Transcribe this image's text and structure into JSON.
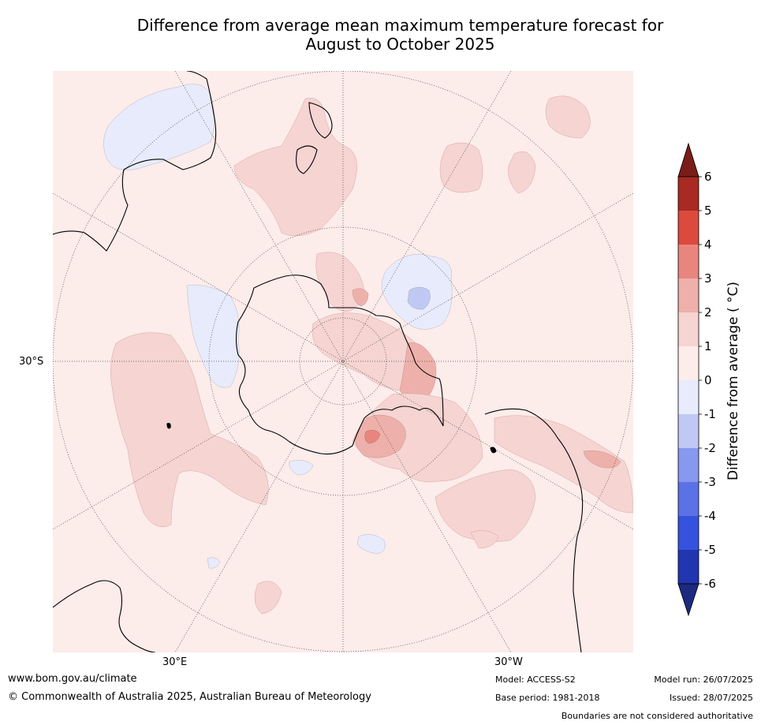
{
  "title": {
    "line1": "Difference from average mean maximum temperature forecast for",
    "line2": "August to October 2025"
  },
  "graticule_labels": {
    "lat_30s": "30°S",
    "lon_30e": "30°E",
    "lon_30w": "30°W"
  },
  "colorbar": {
    "title": "Difference from average ( °C)",
    "ticks": [
      "6",
      "5",
      "4",
      "3",
      "2",
      "1",
      "0",
      "-1",
      "-2",
      "-3",
      "-4",
      "-5",
      "-6"
    ],
    "colors_high_to_low": [
      "#7a1d19",
      "#a82a22",
      "#dc4a3e",
      "#e8867e",
      "#eeb0aa",
      "#f5d4d2",
      "#fcecea",
      "#e8ebfb",
      "#c0c8f4",
      "#8898ee",
      "#5b72e6",
      "#3552de",
      "#2235b0",
      "#1c2a80"
    ]
  },
  "map": {
    "projection": "south polar stereographic",
    "anomaly_colors": {
      "background": "#fcecea",
      "warm_1_2": "#f5d4d2",
      "warm_2_3": "#eeb0aa",
      "warm_3_4": "#e8867e",
      "cool_0_1": "#e8ebfb",
      "cool_1_2": "#c0c8f4"
    }
  },
  "footer": {
    "url": "www.bom.gov.au/climate",
    "copyright": "© Commonwealth of Australia 2025, Australian Bureau of Meteorology",
    "model": "Model: ACCESS-S2",
    "base_period": "Base period: 1981-2018",
    "model_run": "Model run: 26/07/2025",
    "issued": "Issued: 28/07/2025",
    "disclaimer": "Boundaries are not considered authoritative"
  }
}
